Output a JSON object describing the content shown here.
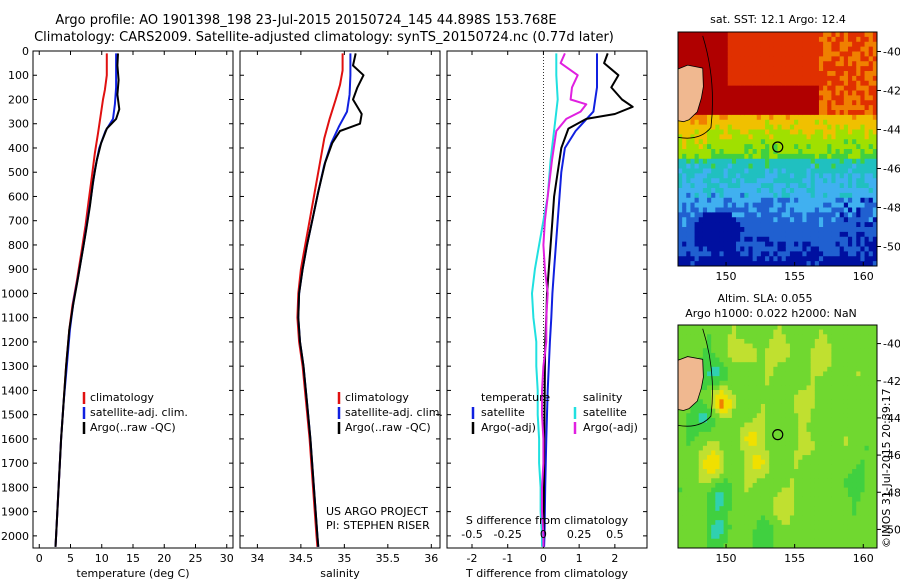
{
  "header": {
    "line1": "Argo profile: AO 1901398_198 23-Jul-2015 20150724_145 44.898S 153.768E",
    "line2": "Climatology: CARS2009. Satellite-adjusted climatology: synTS_20150724.nc (0.77d later)"
  },
  "colors": {
    "red": "#e01010",
    "blue": "#1020e0",
    "black": "#000000",
    "cyan": "#20e0e0",
    "magenta": "#e020e0"
  },
  "chart_data": [
    {
      "id": "temperature",
      "type": "line",
      "xlabel": "temperature (deg C)",
      "ylabel": "",
      "xlim": [
        -1,
        31
      ],
      "ylim": [
        2050,
        0
      ],
      "xticks": [
        0,
        5,
        10,
        15,
        20,
        25,
        30
      ],
      "yticks": [
        0,
        100,
        200,
        300,
        400,
        500,
        600,
        700,
        800,
        900,
        1000,
        1100,
        1200,
        1300,
        1400,
        1500,
        1600,
        1700,
        1800,
        1900,
        2000
      ],
      "legend": {
        "placement": "middle-left",
        "entries": [
          "climatology",
          "satellite-adj. clim.",
          "Argo(..raw -QC)"
        ]
      },
      "series": [
        {
          "name": "climatology",
          "color": "red",
          "points": [
            [
              10.8,
              10
            ],
            [
              10.8,
              100
            ],
            [
              10.5,
              160
            ],
            [
              10.2,
              200
            ],
            [
              9.8,
              270
            ],
            [
              9.4,
              340
            ],
            [
              8.9,
              420
            ],
            [
              8.4,
              520
            ],
            [
              7.9,
              620
            ],
            [
              7.4,
              720
            ],
            [
              6.8,
              820
            ],
            [
              6.0,
              950
            ],
            [
              5.3,
              1050
            ],
            [
              4.8,
              1150
            ],
            [
              4.3,
              1300
            ],
            [
              3.9,
              1450
            ],
            [
              3.5,
              1600
            ],
            [
              3.1,
              1800
            ],
            [
              2.7,
              2000
            ],
            [
              2.6,
              2045
            ]
          ]
        },
        {
          "name": "satellite-adj. clim.",
          "color": "blue",
          "points": [
            [
              12.3,
              10
            ],
            [
              12.3,
              150
            ],
            [
              12.1,
              220
            ],
            [
              11.8,
              280
            ],
            [
              10.6,
              330
            ],
            [
              9.6,
              400
            ],
            [
              8.9,
              490
            ],
            [
              8.3,
              600
            ],
            [
              7.7,
              700
            ],
            [
              7.1,
              800
            ],
            [
              6.3,
              920
            ],
            [
              5.5,
              1030
            ],
            [
              4.9,
              1150
            ],
            [
              4.4,
              1300
            ],
            [
              3.9,
              1450
            ],
            [
              3.5,
              1600
            ],
            [
              3.1,
              1800
            ],
            [
              2.7,
              2000
            ],
            [
              2.6,
              2045
            ]
          ]
        },
        {
          "name": "Argo(..raw -QC)",
          "color": "black",
          "points": [
            [
              12.6,
              10
            ],
            [
              12.5,
              60
            ],
            [
              12.7,
              120
            ],
            [
              12.5,
              180
            ],
            [
              12.8,
              240
            ],
            [
              12.3,
              280
            ],
            [
              10.8,
              320
            ],
            [
              9.9,
              380
            ],
            [
              9.2,
              450
            ],
            [
              8.6,
              540
            ],
            [
              8.1,
              640
            ],
            [
              7.5,
              740
            ],
            [
              6.9,
              830
            ],
            [
              6.1,
              950
            ],
            [
              5.4,
              1050
            ],
            [
              4.8,
              1150
            ],
            [
              4.3,
              1300
            ],
            [
              3.9,
              1450
            ],
            [
              3.5,
              1600
            ],
            [
              3.1,
              1800
            ],
            [
              2.7,
              2000
            ],
            [
              2.6,
              2045
            ]
          ]
        }
      ]
    },
    {
      "id": "salinity",
      "type": "line",
      "xlabel": "salinity",
      "ylabel": "",
      "xlim": [
        33.8,
        36.1
      ],
      "ylim": [
        2050,
        0
      ],
      "xticks": [
        34,
        34.5,
        35,
        35.5,
        36
      ],
      "legend": {
        "placement": "middle-right",
        "entries": [
          "climatology",
          "satellite-adj. clim.",
          "Argo(..raw -QC)"
        ]
      },
      "annotations": [
        "US ARGO PROJECT",
        "PI: STEPHEN RISER"
      ],
      "series": [
        {
          "name": "climatology",
          "color": "red",
          "points": [
            [
              34.98,
              10
            ],
            [
              34.98,
              80
            ],
            [
              34.95,
              140
            ],
            [
              34.9,
              200
            ],
            [
              34.83,
              280
            ],
            [
              34.77,
              360
            ],
            [
              34.72,
              460
            ],
            [
              34.66,
              580
            ],
            [
              34.6,
              700
            ],
            [
              34.55,
              800
            ],
            [
              34.5,
              900
            ],
            [
              34.47,
              1000
            ],
            [
              34.46,
              1100
            ],
            [
              34.48,
              1200
            ],
            [
              34.52,
              1300
            ],
            [
              34.56,
              1450
            ],
            [
              34.6,
              1600
            ],
            [
              34.64,
              1800
            ],
            [
              34.68,
              2000
            ],
            [
              34.69,
              2045
            ]
          ]
        },
        {
          "name": "satellite-adj. clim.",
          "color": "blue",
          "points": [
            [
              35.07,
              10
            ],
            [
              35.07,
              100
            ],
            [
              35.06,
              180
            ],
            [
              35.03,
              250
            ],
            [
              34.94,
              310
            ],
            [
              34.85,
              380
            ],
            [
              34.77,
              470
            ],
            [
              34.7,
              580
            ],
            [
              34.63,
              700
            ],
            [
              34.57,
              800
            ],
            [
              34.52,
              900
            ],
            [
              34.48,
              1000
            ],
            [
              34.47,
              1100
            ],
            [
              34.49,
              1200
            ],
            [
              34.53,
              1300
            ],
            [
              34.57,
              1450
            ],
            [
              34.61,
              1600
            ],
            [
              34.65,
              1800
            ],
            [
              34.69,
              2000
            ],
            [
              34.7,
              2045
            ]
          ]
        },
        {
          "name": "Argo(..raw -QC)",
          "color": "black",
          "points": [
            [
              35.13,
              10
            ],
            [
              35.1,
              60
            ],
            [
              35.22,
              100
            ],
            [
              35.15,
              150
            ],
            [
              35.1,
              200
            ],
            [
              35.2,
              260
            ],
            [
              35.18,
              300
            ],
            [
              34.95,
              330
            ],
            [
              34.86,
              380
            ],
            [
              34.78,
              460
            ],
            [
              34.7,
              580
            ],
            [
              34.63,
              700
            ],
            [
              34.57,
              800
            ],
            [
              34.52,
              900
            ],
            [
              34.48,
              1000
            ],
            [
              34.47,
              1100
            ],
            [
              34.49,
              1200
            ],
            [
              34.53,
              1300
            ],
            [
              34.57,
              1450
            ],
            [
              34.61,
              1600
            ],
            [
              34.65,
              1800
            ],
            [
              34.69,
              2000
            ],
            [
              34.7,
              2045
            ]
          ]
        }
      ]
    },
    {
      "id": "difference",
      "type": "line",
      "xlabel": "T difference from climatology",
      "xlabel2": "S difference from climatology",
      "xlim": [
        -2.7,
        2.9
      ],
      "ylim": [
        2050,
        0
      ],
      "xticks": [
        -2,
        -1,
        0,
        1,
        2
      ],
      "xticks2": [
        -0.5,
        -0.25,
        0,
        0.25,
        0.5
      ],
      "xticks2_labels": [
        "-0.5",
        "-0.25",
        "0",
        "0.25",
        "0.5"
      ],
      "legend": {
        "placement": "middle",
        "headers": [
          "temperature",
          "salinity"
        ],
        "entries": [
          "satellite",
          "Argo(-adj)",
          "satellite",
          "Argo(-adj)"
        ]
      },
      "series": [
        {
          "name": "satellite",
          "group": "temperature",
          "color": "blue",
          "points": [
            [
              1.5,
              10
            ],
            [
              1.5,
              150
            ],
            [
              1.4,
              250
            ],
            [
              0.9,
              330
            ],
            [
              0.6,
              400
            ],
            [
              0.5,
              500
            ],
            [
              0.45,
              600
            ],
            [
              0.4,
              700
            ],
            [
              0.35,
              800
            ],
            [
              0.3,
              900
            ],
            [
              0.25,
              1000
            ],
            [
              0.22,
              1100
            ],
            [
              0.18,
              1200
            ],
            [
              0.15,
              1300
            ],
            [
              0.12,
              1400
            ],
            [
              0.1,
              1500
            ],
            [
              0.08,
              1600
            ],
            [
              0.05,
              1800
            ],
            [
              0.03,
              2000
            ],
            [
              0.02,
              2045
            ]
          ]
        },
        {
          "name": "Argo(-adj)",
          "group": "temperature",
          "color": "black",
          "points": [
            [
              1.8,
              10
            ],
            [
              1.7,
              50
            ],
            [
              2.1,
              100
            ],
            [
              1.9,
              150
            ],
            [
              2.2,
              200
            ],
            [
              2.5,
              230
            ],
            [
              2.0,
              260
            ],
            [
              1.2,
              280
            ],
            [
              0.7,
              320
            ],
            [
              0.5,
              400
            ],
            [
              0.4,
              500
            ],
            [
              0.3,
              600
            ],
            [
              0.25,
              700
            ],
            [
              0.2,
              800
            ],
            [
              0.15,
              900
            ],
            [
              0.1,
              1000
            ],
            [
              0.08,
              1100
            ],
            [
              0.05,
              1200
            ],
            [
              0.04,
              1300
            ],
            [
              0.03,
              1500
            ],
            [
              0.02,
              1700
            ],
            [
              0.01,
              1900
            ],
            [
              0.0,
              2045
            ]
          ]
        },
        {
          "name": "satellite",
          "group": "salinity",
          "color": "cyan",
          "points": [
            [
              0.09,
              10
            ],
            [
              0.09,
              100
            ],
            [
              0.1,
              200
            ],
            [
              0.08,
              300
            ],
            [
              0.05,
              450
            ],
            [
              0.03,
              600
            ],
            [
              0.0,
              700
            ],
            [
              -0.03,
              800
            ],
            [
              -0.06,
              900
            ],
            [
              -0.08,
              1000
            ],
            [
              -0.07,
              1100
            ],
            [
              -0.05,
              1200
            ],
            [
              -0.05,
              1300
            ],
            [
              -0.04,
              1400
            ],
            [
              -0.04,
              1500
            ],
            [
              -0.03,
              1600
            ],
            [
              -0.03,
              1700
            ],
            [
              -0.02,
              1800
            ],
            [
              -0.02,
              1900
            ],
            [
              -0.01,
              2000
            ],
            [
              -0.01,
              2045
            ]
          ]
        },
        {
          "name": "Argo(-adj)",
          "group": "salinity",
          "color": "magenta",
          "points": [
            [
              0.15,
              10
            ],
            [
              0.12,
              50
            ],
            [
              0.24,
              100
            ],
            [
              0.2,
              150
            ],
            [
              0.19,
              200
            ],
            [
              0.3,
              220
            ],
            [
              0.26,
              250
            ],
            [
              0.16,
              280
            ],
            [
              0.09,
              330
            ],
            [
              0.06,
              450
            ],
            [
              0.03,
              600
            ],
            [
              0.01,
              700
            ],
            [
              0.0,
              800
            ],
            [
              0.01,
              900
            ],
            [
              0.03,
              1000
            ],
            [
              0.02,
              1100
            ],
            [
              0.02,
              1200
            ],
            [
              0.0,
              1300
            ],
            [
              -0.01,
              1400
            ],
            [
              -0.01,
              1500
            ],
            [
              0.0,
              1600
            ],
            [
              0.0,
              1700
            ],
            [
              -0.01,
              1800
            ],
            [
              -0.01,
              1900
            ],
            [
              0.0,
              2000
            ],
            [
              0.0,
              2045
            ]
          ]
        }
      ]
    },
    {
      "id": "sst-map",
      "type": "heatmap",
      "title": "sat. SST: 12.1  Argo: 12.4",
      "xlim": [
        146.5,
        161.0
      ],
      "ylim": [
        -51.0,
        -39.0
      ],
      "xticks": [
        150,
        155,
        160
      ],
      "yticks": [
        -40,
        -42,
        -44,
        -46,
        -48,
        -50
      ],
      "marker": {
        "lon": 153.768,
        "lat": -44.898
      },
      "colors": [
        "#800000",
        "#b00000",
        "#e03000",
        "#f08000",
        "#f0c000",
        "#a0e000",
        "#40d040",
        "#20c0c0",
        "#40b0f0",
        "#2060d0",
        "#0010a0"
      ]
    },
    {
      "id": "sla-map",
      "type": "heatmap",
      "title": "Altim. SLA: 0.055",
      "title2": "Argo h1000: 0.022 h2000: NaN",
      "xlim": [
        146.5,
        161.0
      ],
      "ylim": [
        -51.0,
        -39.0
      ],
      "xticks": [
        150,
        155,
        160
      ],
      "yticks": [
        -40,
        -42,
        -44,
        -46,
        -48,
        -50
      ],
      "marker": {
        "lon": 153.768,
        "lat": -44.898
      },
      "colors": [
        "#2040c0",
        "#40b0f0",
        "#30d0b0",
        "#40d040",
        "#70d830",
        "#c0e030",
        "#f0e000",
        "#f08000",
        "#c02000"
      ]
    }
  ],
  "footer": {
    "credit": "©IMOS 31-Jul-2015 20:39:17"
  }
}
